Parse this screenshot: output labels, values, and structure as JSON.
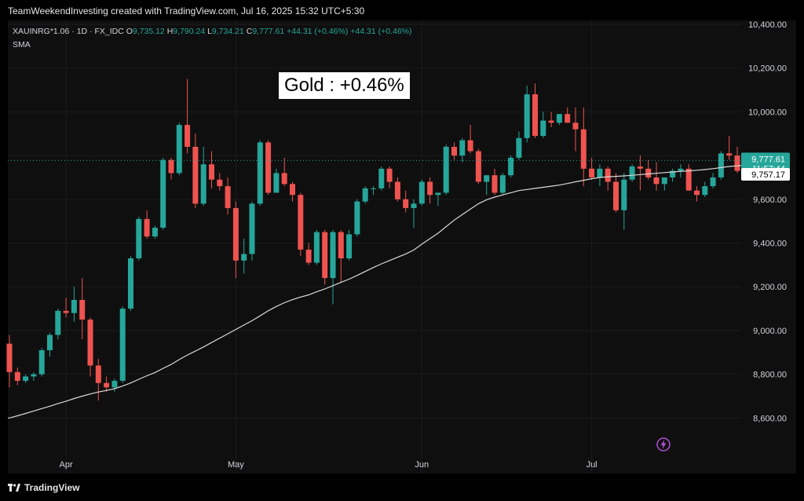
{
  "header": {
    "credit": "TeamWeekendInvesting created with TradingView.com, Jul 16, 2025 15:32 UTC+5:30"
  },
  "legend": {
    "symbol": "XAUINRG*1.06 · 1D · FX_IDC",
    "open_label": "O",
    "open": "9,735.12",
    "high_label": "H",
    "high": "9,790.24",
    "low_label": "L",
    "low": "9,734.21",
    "close_label": "C",
    "close": "9,777.61",
    "change1": "+44.31 (+0.46%)",
    "change2": "+44.31 (+0.46%)",
    "indicator": "SMA"
  },
  "annotation": "Gold : +0.46%",
  "footer": {
    "brand": "TradingView"
  },
  "colors": {
    "up": "#26a69a",
    "down": "#ef5350",
    "sma": "#d9d9d9",
    "background": "#0f0f0f"
  },
  "icons": {
    "bolt": "lightning-bolt-icon"
  },
  "chart_data": {
    "type": "candlestick",
    "title": "",
    "ylim": [
      8450,
      10450
    ],
    "y_ticks": [
      "8,600.00",
      "8,800.00",
      "9,000.00",
      "9,200.00",
      "9,400.00",
      "9,600.00",
      "9,800.00",
      "10,000.00",
      "10,200.00",
      "10,400.00"
    ],
    "y_tick_values": [
      8600,
      8800,
      9000,
      9200,
      9400,
      9600,
      9800,
      10000,
      10200,
      10400
    ],
    "x_ticks": [
      {
        "label": "Apr",
        "index": 7
      },
      {
        "label": "May",
        "index": 28
      },
      {
        "label": "Jun",
        "index": 51
      },
      {
        "label": "Jul",
        "index": 72
      }
    ],
    "last_price_label": "9,777.61",
    "countdown_label": "11:57:44",
    "sma_price_label": "9,757.17",
    "last_price": 9777.61,
    "sma_last": 9757.17,
    "candles": [
      [
        8940,
        8980,
        8740,
        8810
      ],
      [
        8810,
        8830,
        8750,
        8770
      ],
      [
        8770,
        8800,
        8760,
        8790
      ],
      [
        8790,
        8810,
        8770,
        8800
      ],
      [
        8800,
        8920,
        8790,
        8910
      ],
      [
        8910,
        8990,
        8880,
        8980
      ],
      [
        8980,
        9100,
        8960,
        9090
      ],
      [
        9090,
        9150,
        9060,
        9080
      ],
      [
        9080,
        9200,
        9040,
        9140
      ],
      [
        9140,
        9240,
        8960,
        9050
      ],
      [
        9050,
        9060,
        8790,
        8840
      ],
      [
        8840,
        8870,
        8680,
        8760
      ],
      [
        8760,
        8790,
        8720,
        8740
      ],
      [
        8740,
        8780,
        8720,
        8770
      ],
      [
        8770,
        9110,
        8760,
        9100
      ],
      [
        9100,
        9340,
        9090,
        9330
      ],
      [
        9330,
        9520,
        9320,
        9510
      ],
      [
        9510,
        9550,
        9420,
        9430
      ],
      [
        9430,
        9480,
        9420,
        9470
      ],
      [
        9470,
        9790,
        9460,
        9780
      ],
      [
        9780,
        9790,
        9690,
        9720
      ],
      [
        9720,
        9950,
        9710,
        9940
      ],
      [
        9940,
        10150,
        9810,
        9840
      ],
      [
        9840,
        9900,
        9560,
        9580
      ],
      [
        9580,
        9840,
        9570,
        9760
      ],
      [
        9760,
        9820,
        9650,
        9690
      ],
      [
        9690,
        9720,
        9640,
        9660
      ],
      [
        9660,
        9700,
        9530,
        9560
      ],
      [
        9560,
        9590,
        9240,
        9320
      ],
      [
        9320,
        9420,
        9260,
        9350
      ],
      [
        9350,
        9590,
        9320,
        9580
      ],
      [
        9580,
        9870,
        9570,
        9860
      ],
      [
        9860,
        9870,
        9620,
        9630
      ],
      [
        9630,
        9740,
        9630,
        9720
      ],
      [
        9720,
        9790,
        9660,
        9670
      ],
      [
        9670,
        9680,
        9590,
        9620
      ],
      [
        9620,
        9630,
        9340,
        9370
      ],
      [
        9370,
        9400,
        9300,
        9310
      ],
      [
        9310,
        9460,
        9300,
        9450
      ],
      [
        9450,
        9460,
        9210,
        9240
      ],
      [
        9240,
        9460,
        9120,
        9450
      ],
      [
        9450,
        9460,
        9220,
        9330
      ],
      [
        9330,
        9460,
        9320,
        9440
      ],
      [
        9440,
        9600,
        9430,
        9590
      ],
      [
        9590,
        9660,
        9580,
        9650
      ],
      [
        9650,
        9660,
        9620,
        9650
      ],
      [
        9650,
        9750,
        9640,
        9740
      ],
      [
        9740,
        9750,
        9650,
        9680
      ],
      [
        9680,
        9700,
        9590,
        9600
      ],
      [
        9600,
        9640,
        9540,
        9560
      ],
      [
        9560,
        9600,
        9470,
        9580
      ],
      [
        9580,
        9690,
        9570,
        9680
      ],
      [
        9680,
        9700,
        9580,
        9620
      ],
      [
        9620,
        9630,
        9570,
        9630
      ],
      [
        9630,
        9850,
        9620,
        9840
      ],
      [
        9840,
        9860,
        9780,
        9800
      ],
      [
        9800,
        9880,
        9770,
        9870
      ],
      [
        9870,
        9940,
        9810,
        9820
      ],
      [
        9820,
        9830,
        9670,
        9680
      ],
      [
        9680,
        9700,
        9620,
        9710
      ],
      [
        9710,
        9740,
        9620,
        9630
      ],
      [
        9630,
        9720,
        9620,
        9710
      ],
      [
        9710,
        9800,
        9700,
        9790
      ],
      [
        9790,
        9910,
        9780,
        9880
      ],
      [
        9880,
        10120,
        9860,
        10080
      ],
      [
        10080,
        10130,
        9880,
        9890
      ],
      [
        9890,
        10000,
        9880,
        9960
      ],
      [
        9960,
        10000,
        9930,
        9950
      ],
      [
        9950,
        9990,
        9940,
        9990
      ],
      [
        9990,
        10020,
        9950,
        9950
      ],
      [
        9950,
        10020,
        9820,
        9920
      ],
      [
        9920,
        10020,
        9660,
        9740
      ],
      [
        9740,
        9790,
        9690,
        9700
      ],
      [
        9700,
        9760,
        9660,
        9740
      ],
      [
        9740,
        9750,
        9640,
        9680
      ],
      [
        9680,
        9720,
        9540,
        9550
      ],
      [
        9550,
        9720,
        9460,
        9690
      ],
      [
        9690,
        9760,
        9680,
        9750
      ],
      [
        9750,
        9800,
        9640,
        9740
      ],
      [
        9740,
        9780,
        9690,
        9700
      ],
      [
        9700,
        9770,
        9640,
        9670
      ],
      [
        9670,
        9700,
        9640,
        9700
      ],
      [
        9700,
        9740,
        9680,
        9730
      ],
      [
        9730,
        9760,
        9700,
        9740
      ],
      [
        9740,
        9760,
        9640,
        9640
      ],
      [
        9640,
        9660,
        9590,
        9620
      ],
      [
        9620,
        9680,
        9610,
        9660
      ],
      [
        9660,
        9720,
        9650,
        9700
      ],
      [
        9700,
        9820,
        9690,
        9810
      ],
      [
        9810,
        9890,
        9780,
        9800
      ],
      [
        9800,
        9840,
        9720,
        9730
      ],
      [
        9735,
        9790,
        9734,
        9778
      ]
    ],
    "sma": [
      8600,
      8610,
      8621,
      8632,
      8643,
      8654,
      8666,
      8677,
      8689,
      8700,
      8710,
      8719,
      8726,
      8734,
      8746,
      8760,
      8777,
      8793,
      8808,
      8827,
      8845,
      8867,
      8888,
      8906,
      8925,
      8945,
      8965,
      8985,
      9005,
      9025,
      9045,
      9067,
      9090,
      9110,
      9127,
      9141,
      9153,
      9163,
      9177,
      9190,
      9205,
      9220,
      9235,
      9252,
      9270,
      9288,
      9305,
      9320,
      9335,
      9350,
      9368,
      9395,
      9420,
      9445,
      9475,
      9505,
      9530,
      9555,
      9580,
      9598,
      9610,
      9620,
      9630,
      9640,
      9645,
      9650,
      9655,
      9660,
      9665,
      9672,
      9680,
      9687,
      9694,
      9700,
      9703,
      9705,
      9707,
      9710,
      9713,
      9716,
      9719,
      9722,
      9725,
      9728,
      9730,
      9733,
      9736,
      9740,
      9745,
      9750,
      9753,
      9757
    ]
  }
}
